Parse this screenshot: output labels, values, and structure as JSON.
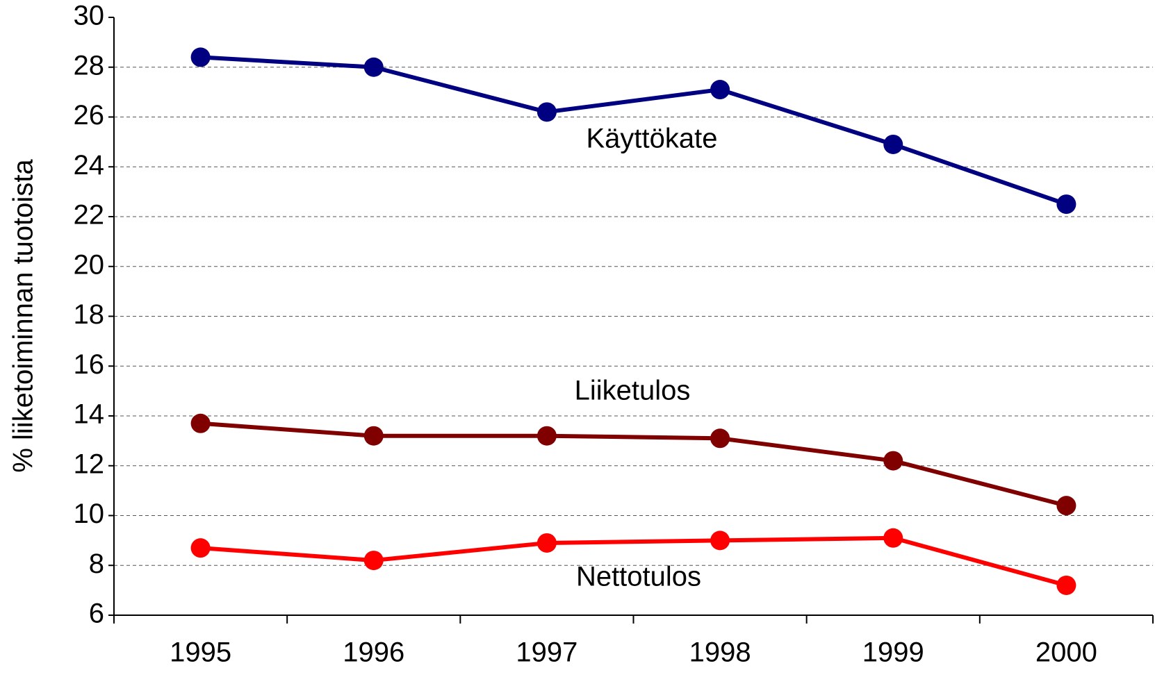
{
  "chart_data": {
    "type": "line",
    "y_label": "% liiketoiminnan tuotoista",
    "categories": [
      "1995",
      "1996",
      "1997",
      "1998",
      "1999",
      "2000"
    ],
    "series": [
      {
        "name": "Käyttökate",
        "color": "#000080",
        "values": [
          28.4,
          28.0,
          26.2,
          27.1,
          24.9,
          22.5
        ]
      },
      {
        "name": "Liiketulos",
        "color": "#800000",
        "values": [
          13.7,
          13.2,
          13.2,
          13.1,
          12.2,
          10.4
        ]
      },
      {
        "name": "Nettotulos",
        "color": "#ff0000",
        "values": [
          8.7,
          8.2,
          8.9,
          9.0,
          9.1,
          7.2
        ]
      }
    ],
    "ylim": [
      6,
      30
    ],
    "yticks": [
      6,
      8,
      10,
      12,
      14,
      16,
      18,
      20,
      22,
      24,
      26,
      28,
      30
    ],
    "grid": true
  }
}
